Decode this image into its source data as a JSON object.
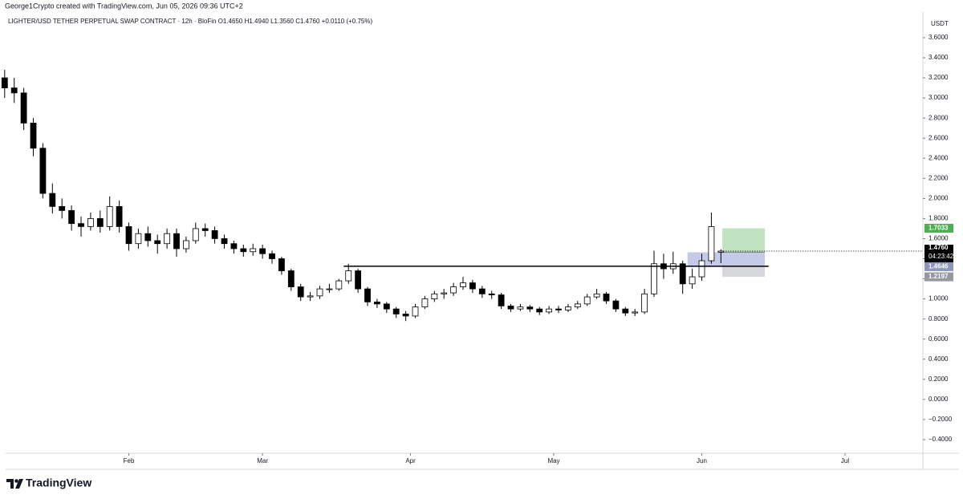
{
  "header": {
    "credit": "George1Crypto created with TradingView.com, Jun 05, 2026 09:36 UTC+2",
    "symbol_line": "LIGHTER/USD TETHER PERPETUAL SWAP CONTRACT · 12h · BloFin   O1.4650 H1.4940 L1.3560 C1.4760 +0.0110 (+0.75%)",
    "logo": "TradingView"
  },
  "chart_data": {
    "type": "candlestick",
    "currency": "USDT",
    "x": [
      5,
      7,
      9,
      11,
      13,
      15,
      17,
      19,
      21,
      23,
      25,
      27,
      29,
      31,
      33,
      35,
      37,
      39,
      41,
      43,
      45,
      47,
      49,
      51,
      53,
      55,
      57,
      59,
      61,
      63,
      65,
      67,
      69,
      71,
      73,
      75,
      77,
      79,
      81,
      83,
      85,
      87,
      89,
      91,
      93,
      95,
      97,
      99,
      101,
      103,
      105,
      107,
      109,
      111,
      113,
      115,
      117,
      119,
      121,
      123,
      125,
      127,
      129,
      131,
      133,
      135,
      137,
      139,
      141,
      143,
      145,
      147,
      149,
      151,
      153,
      155
    ],
    "open": [
      3.2,
      3.1,
      3.05,
      2.75,
      2.5,
      2.05,
      1.92,
      1.88,
      1.75,
      1.72,
      1.8,
      1.72,
      1.92,
      1.72,
      1.55,
      1.65,
      1.58,
      1.55,
      1.65,
      1.5,
      1.58,
      1.7,
      1.68,
      1.6,
      1.55,
      1.5,
      1.47,
      1.5,
      1.45,
      1.4,
      1.28,
      1.12,
      1.02,
      1.03,
      1.1,
      1.1,
      1.18,
      1.28,
      1.1,
      0.97,
      0.95,
      0.9,
      0.85,
      0.83,
      0.92,
      1.0,
      1.05,
      1.06,
      1.12,
      1.16,
      1.1,
      1.05,
      1.04,
      0.93,
      0.9,
      0.92,
      0.9,
      0.87,
      0.9,
      0.89,
      0.92,
      0.95,
      1.02,
      1.05,
      0.98,
      0.9,
      0.86,
      0.87,
      1.05,
      1.35,
      1.3,
      1.35,
      1.15,
      1.22,
      1.38,
      1.465
    ],
    "high": [
      3.28,
      3.2,
      3.1,
      2.8,
      2.55,
      2.15,
      2.0,
      1.93,
      1.82,
      1.86,
      1.88,
      2.02,
      1.98,
      1.76,
      1.7,
      1.72,
      1.64,
      1.7,
      1.7,
      1.62,
      1.76,
      1.75,
      1.72,
      1.64,
      1.58,
      1.54,
      1.55,
      1.54,
      1.48,
      1.42,
      1.3,
      1.15,
      1.07,
      1.13,
      1.15,
      1.2,
      1.35,
      1.3,
      1.12,
      1.0,
      0.97,
      0.92,
      0.88,
      0.95,
      1.03,
      1.08,
      1.1,
      1.16,
      1.22,
      1.19,
      1.13,
      1.08,
      1.06,
      0.95,
      0.95,
      0.94,
      0.92,
      0.93,
      0.93,
      0.95,
      0.98,
      1.05,
      1.1,
      1.07,
      1.0,
      0.92,
      0.9,
      1.1,
      1.48,
      1.45,
      1.47,
      1.38,
      1.3,
      1.45,
      1.86,
      1.494
    ],
    "low": [
      3.0,
      2.95,
      2.68,
      2.42,
      2.0,
      1.85,
      1.8,
      1.68,
      1.62,
      1.68,
      1.66,
      1.68,
      1.66,
      1.48,
      1.5,
      1.52,
      1.45,
      1.5,
      1.42,
      1.46,
      1.55,
      1.62,
      1.55,
      1.5,
      1.45,
      1.42,
      1.43,
      1.4,
      1.35,
      1.24,
      1.08,
      0.98,
      0.98,
      1.0,
      1.06,
      1.08,
      1.15,
      1.06,
      0.93,
      0.91,
      0.86,
      0.81,
      0.78,
      0.81,
      0.9,
      0.97,
      1.0,
      1.03,
      1.09,
      1.06,
      1.01,
      1.0,
      0.9,
      0.87,
      0.88,
      0.87,
      0.84,
      0.85,
      0.86,
      0.87,
      0.9,
      0.93,
      1.0,
      0.95,
      0.87,
      0.83,
      0.83,
      0.85,
      1.02,
      1.2,
      1.25,
      1.05,
      1.1,
      1.18,
      1.35,
      1.356
    ],
    "close": [
      3.1,
      3.05,
      2.75,
      2.5,
      2.05,
      1.92,
      1.88,
      1.75,
      1.72,
      1.8,
      1.72,
      1.92,
      1.72,
      1.55,
      1.65,
      1.58,
      1.55,
      1.65,
      1.5,
      1.58,
      1.7,
      1.68,
      1.6,
      1.55,
      1.5,
      1.47,
      1.5,
      1.45,
      1.4,
      1.28,
      1.12,
      1.02,
      1.03,
      1.1,
      1.1,
      1.18,
      1.28,
      1.1,
      0.97,
      0.95,
      0.9,
      0.85,
      0.83,
      0.92,
      1.0,
      1.05,
      1.06,
      1.12,
      1.16,
      1.1,
      1.05,
      1.04,
      0.93,
      0.9,
      0.92,
      0.9,
      0.87,
      0.9,
      0.89,
      0.92,
      0.95,
      1.02,
      1.05,
      0.98,
      0.9,
      0.86,
      0.87,
      1.05,
      1.35,
      1.3,
      1.35,
      1.15,
      1.22,
      1.38,
      1.72,
      1.476
    ],
    "up_color": "#ffffff",
    "down_color": "#000000",
    "xlim": [
      5.2,
      197.3
    ],
    "xticks": [
      {
        "value": 31,
        "label": "Feb"
      },
      {
        "value": 59,
        "label": "Mar"
      },
      {
        "value": 90,
        "label": "Apr"
      },
      {
        "value": 120,
        "label": "May"
      },
      {
        "value": 151,
        "label": "Jun"
      },
      {
        "value": 181,
        "label": "Jul"
      }
    ],
    "ylim": [
      -0.536,
      3.855
    ],
    "yticks": [
      {
        "value": -0.4,
        "label": "−0.4000"
      },
      {
        "value": -0.2,
        "label": "−0.2000"
      },
      {
        "value": 0,
        "label": "0.0000"
      },
      {
        "value": 0.2,
        "label": "0.2000"
      },
      {
        "value": 0.4,
        "label": "0.4000"
      },
      {
        "value": 0.6,
        "label": "0.6000"
      },
      {
        "value": 0.8,
        "label": "0.8000"
      },
      {
        "value": 1,
        "label": "1.0000"
      },
      {
        "value": 1.2,
        "label": "1.2000"
      },
      {
        "value": 1.4,
        "label": "1.4000"
      },
      {
        "value": 1.6,
        "label": "1.6000"
      },
      {
        "value": 1.8,
        "label": "1.8000"
      },
      {
        "value": 2,
        "label": "2.0000"
      },
      {
        "value": 2.2,
        "label": "2.2000"
      },
      {
        "value": 2.4,
        "label": "2.4000"
      },
      {
        "value": 2.6,
        "label": "2.6000"
      },
      {
        "value": 2.8,
        "label": "2.8000"
      },
      {
        "value": 3,
        "label": "3.0000"
      },
      {
        "value": 3.2,
        "label": "3.2000"
      },
      {
        "value": 3.4,
        "label": "3.4000"
      },
      {
        "value": 3.6,
        "label": "3.6000"
      }
    ],
    "hline": {
      "value": 1.325,
      "start": 76,
      "end": 165
    },
    "position": {
      "entry": 1.4646,
      "target": 1.7033,
      "stop": 1.2197,
      "start": 155.3,
      "end": 164.2,
      "zone_start": 148
    },
    "last_price": {
      "value": 1.476,
      "label": "1.4760"
    },
    "countdown": "04:23:42"
  }
}
